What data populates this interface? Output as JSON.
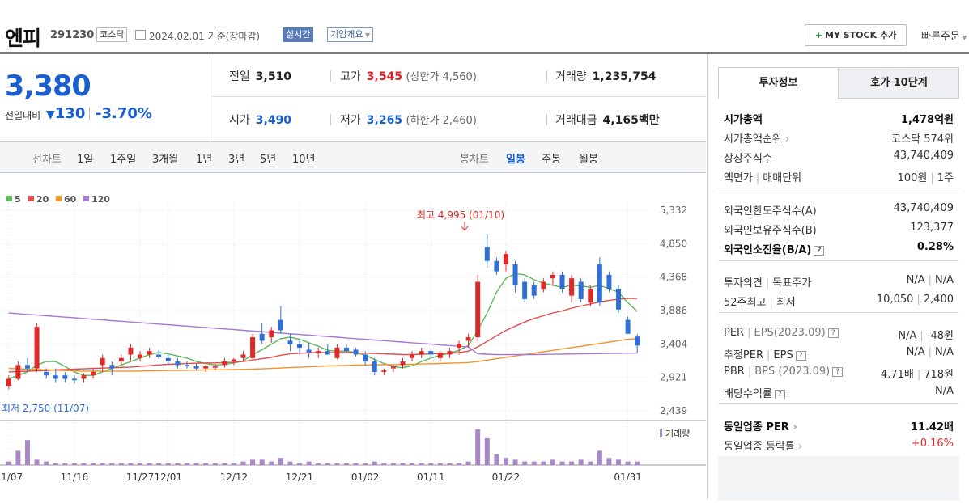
{
  "header": {
    "name": "엔피",
    "code": "291230",
    "market": "코스닥",
    "date": "2024.02.01",
    "basis": "기준(장마감)",
    "realtime": "실시간",
    "company_info": "기업개요",
    "my_stock": "MY STOCK 추가",
    "quick_order": "빠른주문"
  },
  "price": {
    "current": "3,380",
    "prev_label": "전일대비",
    "change": "130",
    "change_pct": "-3.70%"
  },
  "stats": {
    "prev_label": "전일",
    "prev": "3,510",
    "high_label": "고가",
    "high": "3,545",
    "upper_limit": "(상한가 4,560)",
    "volume_label": "거래량",
    "volume": "1,235,754",
    "open_label": "시가",
    "open": "3,490",
    "low_label": "저가",
    "low": "3,265",
    "lower_limit": "(하한가 2,460)",
    "amount_label": "거래대금",
    "amount": "4,165",
    "amount_unit": "백만"
  },
  "period_tabs": {
    "line_label": "선차트",
    "items": [
      "1일",
      "1주일",
      "3개월",
      "1년",
      "3년",
      "5년",
      "10년"
    ],
    "candle_label": "봉차트",
    "candle_items": [
      "일봉",
      "주봉",
      "월봉"
    ],
    "candle_selected": "일봉"
  },
  "chart_data": {
    "type": "candlestick",
    "ma_legend": [
      "5",
      "20",
      "60",
      "120"
    ],
    "ma_colors": [
      "#5cb85c",
      "#e84a4a",
      "#f0932b",
      "#a678d8"
    ],
    "y_ticks": [
      "5,332",
      "4,850",
      "4,368",
      "3,886",
      "3,404",
      "2,921",
      "2,439"
    ],
    "ylim": [
      2439,
      5332
    ],
    "x_ticks": [
      "11/07",
      "11/16",
      "11/27",
      "12/01",
      "12/12",
      "12/21",
      "01/02",
      "01/11",
      "01/22",
      "01/31"
    ],
    "high_annotation": "최고 4,995 (01/10)",
    "low_annotation": "최저 2,750 (11/07)",
    "volume_label": "거래량",
    "candles": [
      [
        2800,
        2950,
        2750,
        2900
      ],
      [
        2900,
        3150,
        2880,
        3100
      ],
      [
        3100,
        3200,
        3000,
        3050
      ],
      [
        3050,
        3700,
        3000,
        3650
      ],
      [
        3000,
        3050,
        2900,
        2950
      ],
      [
        2950,
        3050,
        2850,
        2900
      ],
      [
        2950,
        3000,
        2850,
        2900
      ],
      [
        2900,
        2950,
        2830,
        2880
      ],
      [
        2900,
        2980,
        2850,
        2950
      ],
      [
        2950,
        3050,
        2900,
        3000
      ],
      [
        3100,
        3250,
        3000,
        3200
      ],
      [
        3100,
        3150,
        2950,
        3050
      ],
      [
        3150,
        3250,
        3100,
        3200
      ],
      [
        3250,
        3400,
        3150,
        3350
      ],
      [
        3200,
        3300,
        3150,
        3250
      ],
      [
        3250,
        3350,
        3200,
        3300
      ],
      [
        3250,
        3320,
        3180,
        3220
      ],
      [
        3200,
        3250,
        3100,
        3150
      ],
      [
        3150,
        3200,
        3050,
        3100
      ],
      [
        3100,
        3150,
        3050,
        3080
      ],
      [
        3080,
        3120,
        3020,
        3050
      ],
      [
        3050,
        3100,
        3000,
        3080
      ],
      [
        3060,
        3120,
        3020,
        3080
      ],
      [
        3100,
        3200,
        3060,
        3150
      ],
      [
        3150,
        3200,
        3100,
        3180
      ],
      [
        3200,
        3300,
        3150,
        3250
      ],
      [
        3200,
        3550,
        3180,
        3500
      ],
      [
        3550,
        3700,
        3400,
        3450
      ],
      [
        3500,
        3650,
        3420,
        3600
      ],
      [
        3750,
        3950,
        3550,
        3600
      ],
      [
        3450,
        3550,
        3300,
        3400
      ],
      [
        3400,
        3450,
        3250,
        3350
      ],
      [
        3320,
        3420,
        3200,
        3280
      ],
      [
        3280,
        3350,
        3200,
        3300
      ],
      [
        3300,
        3400,
        3250,
        3250
      ],
      [
        3200,
        3400,
        3180,
        3350
      ],
      [
        3350,
        3400,
        3280,
        3300
      ],
      [
        3320,
        3350,
        3220,
        3250
      ],
      [
        3250,
        3300,
        3100,
        3150
      ],
      [
        3150,
        3200,
        2950,
        3000
      ],
      [
        3000,
        3050,
        2950,
        3020
      ],
      [
        3050,
        3100,
        3000,
        3080
      ],
      [
        3100,
        3200,
        3050,
        3150
      ],
      [
        3200,
        3300,
        3150,
        3250
      ],
      [
        3250,
        3350,
        3200,
        3300
      ],
      [
        3300,
        3350,
        3200,
        3250
      ],
      [
        3200,
        3300,
        3150,
        3280
      ],
      [
        3250,
        3350,
        3200,
        3300
      ],
      [
        3350,
        3450,
        3250,
        3400
      ],
      [
        3450,
        3550,
        3350,
        3500
      ],
      [
        3500,
        4400,
        3450,
        4300
      ],
      [
        4800,
        4995,
        4500,
        4600
      ],
      [
        4600,
        4650,
        4400,
        4450
      ],
      [
        4550,
        4750,
        4450,
        4700
      ],
      [
        4550,
        4600,
        4150,
        4250
      ],
      [
        4300,
        4350,
        4000,
        4050
      ],
      [
        4250,
        4300,
        4050,
        4100
      ],
      [
        4200,
        4350,
        4150,
        4300
      ],
      [
        4350,
        4450,
        4250,
        4400
      ],
      [
        4400,
        4450,
        4150,
        4200
      ],
      [
        4100,
        4400,
        4000,
        4350
      ],
      [
        4300,
        4350,
        4000,
        4050
      ],
      [
        4000,
        4250,
        3950,
        4200
      ],
      [
        4550,
        4650,
        3950,
        4000
      ],
      [
        4400,
        4450,
        4150,
        4200
      ],
      [
        4200,
        4250,
        3850,
        3900
      ],
      [
        3750,
        3800,
        3550,
        3550
      ],
      [
        3510,
        3545,
        3265,
        3380
      ]
    ],
    "ma5": [
      2900,
      2950,
      3000,
      3100,
      3150,
      3150,
      3080,
      3000,
      2950,
      2950,
      3000,
      3050,
      3100,
      3150,
      3200,
      3250,
      3280,
      3260,
      3230,
      3200,
      3150,
      3120,
      3100,
      3110,
      3130,
      3160,
      3250,
      3320,
      3400,
      3480,
      3500,
      3470,
      3420,
      3370,
      3310,
      3300,
      3300,
      3280,
      3240,
      3180,
      3120,
      3080,
      3060,
      3090,
      3150,
      3200,
      3240,
      3270,
      3310,
      3380,
      3600,
      3850,
      4150,
      4350,
      4420,
      4400,
      4330,
      4280,
      4250,
      4220,
      4250,
      4240,
      4220,
      4250,
      4200,
      4150,
      4000,
      3870
    ],
    "ma20": [
      3000,
      3005,
      3010,
      3015,
      3020,
      3030,
      3035,
      3040,
      3045,
      3050,
      3055,
      3060,
      3065,
      3070,
      3080,
      3090,
      3100,
      3110,
      3115,
      3120,
      3125,
      3130,
      3130,
      3135,
      3140,
      3150,
      3170,
      3190,
      3210,
      3240,
      3260,
      3270,
      3275,
      3280,
      3280,
      3280,
      3280,
      3275,
      3270,
      3265,
      3260,
      3255,
      3250,
      3250,
      3255,
      3260,
      3265,
      3270,
      3280,
      3300,
      3360,
      3440,
      3520,
      3600,
      3660,
      3720,
      3770,
      3810,
      3850,
      3880,
      3920,
      3950,
      3980,
      4010,
      4030,
      4050,
      4060,
      4060
    ],
    "ma60": [
      3050,
      3045,
      3040,
      3035,
      3030,
      3025,
      3020,
      3015,
      3010,
      3010,
      3010,
      3010,
      3010,
      3010,
      3012,
      3015,
      3018,
      3020,
      3022,
      3024,
      3026,
      3028,
      3030,
      3032,
      3034,
      3036,
      3040,
      3045,
      3050,
      3056,
      3062,
      3068,
      3074,
      3080,
      3086,
      3090,
      3094,
      3098,
      3100,
      3102,
      3104,
      3106,
      3108,
      3110,
      3114,
      3118,
      3122,
      3126,
      3130,
      3136,
      3150,
      3170,
      3190,
      3210,
      3230,
      3250,
      3270,
      3290,
      3310,
      3330,
      3350,
      3370,
      3390,
      3410,
      3430,
      3450,
      3470,
      3480
    ],
    "ma120": [
      3850,
      3840,
      3830,
      3820,
      3810,
      3800,
      3790,
      3780,
      3770,
      3760,
      3750,
      3740,
      3730,
      3720,
      3710,
      3700,
      3690,
      3680,
      3670,
      3660,
      3650,
      3640,
      3630,
      3620,
      3610,
      3600,
      3590,
      3580,
      3570,
      3560,
      3550,
      3540,
      3530,
      3520,
      3510,
      3500,
      3490,
      3480,
      3470,
      3460,
      3450,
      3440,
      3430,
      3420,
      3410,
      3400,
      3390,
      3380,
      3370,
      3360,
      3260,
      3255,
      3250,
      3250,
      3250,
      3250,
      3250,
      3252,
      3254,
      3256,
      3258,
      3260,
      3262,
      3264,
      3266,
      3268,
      3270,
      3272
    ],
    "volume": [
      2,
      8,
      14,
      3,
      2,
      1,
      1,
      1,
      1,
      1,
      1,
      1,
      1,
      1,
      1,
      1,
      1,
      1,
      1,
      1,
      1,
      1,
      1,
      1,
      1,
      2,
      3,
      3,
      2,
      4,
      2,
      1,
      2,
      1,
      1,
      1,
      1,
      1,
      1,
      2,
      1,
      1,
      1,
      1,
      1,
      1,
      1,
      1,
      1,
      2,
      20,
      15,
      6,
      4,
      3,
      2,
      2,
      2,
      3,
      2,
      2,
      3,
      2,
      8,
      4,
      3,
      2,
      2
    ]
  },
  "invest_panel": {
    "tab_active": "투자정보",
    "tab_other": "호가 10단계",
    "rows": [
      {
        "k": "시가총액",
        "v": "1,478억원",
        "bold": true
      },
      {
        "k": "시가총액순위",
        "v": "코스닥 574위",
        "arrow": true
      },
      {
        "k": "상장주식수",
        "v": "43,740,409"
      },
      {
        "k": "액면가",
        "k2": "매매단위",
        "v": "100원",
        "v2": "1주"
      },
      {
        "k": "외국인한도주식수(A)",
        "v": "43,740,409"
      },
      {
        "k": "외국인보유주식수(B)",
        "v": "123,377"
      },
      {
        "k": "외국인소진율(B/A)",
        "v": "0.28%",
        "bold": true,
        "help": true
      },
      {
        "k": "투자의견",
        "k2": "목표주가",
        "v": "N/A",
        "v2": "N/A"
      },
      {
        "k": "52주최고",
        "k2": "최저",
        "v": "10,050",
        "v2": "2,400"
      },
      {
        "k": "PER",
        "k2": "EPS(2023.09)",
        "v": "N/A",
        "v2": "-48원",
        "help": true
      },
      {
        "k": "추정PER",
        "k2": "EPS",
        "v": "N/A",
        "v2": "N/A",
        "help": true
      },
      {
        "k": "PBR",
        "k2": "BPS (2023.09)",
        "v": "4.71배",
        "v2": "718원",
        "help": true
      },
      {
        "k": "배당수익률",
        "v": "N/A",
        "help": true
      },
      {
        "k": "동일업종 PER",
        "v": "11.42배",
        "bold": true,
        "arrow": true
      },
      {
        "k": "동일업종 등락률",
        "v": "+0.16%",
        "red": true,
        "arrow": true
      }
    ]
  }
}
